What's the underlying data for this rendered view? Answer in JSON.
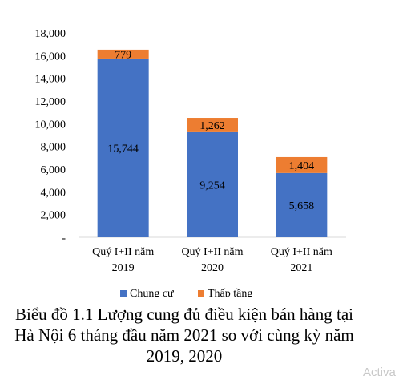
{
  "chart_data": {
    "type": "bar",
    "stacked": true,
    "title": "",
    "xlabel": "",
    "ylabel": "",
    "ylim": [
      0,
      18000
    ],
    "yticks": [
      "-",
      "2,000",
      "4,000",
      "6,000",
      "8,000",
      "10,000",
      "12,000",
      "14,000",
      "16,000",
      "18,000"
    ],
    "ytick_values": [
      0,
      2000,
      4000,
      6000,
      8000,
      10000,
      12000,
      14000,
      16000,
      18000
    ],
    "categories": [
      [
        "Quý I+II năm",
        "2019"
      ],
      [
        "Quý I+II năm",
        "2020"
      ],
      [
        "Quý I+II năm",
        "2021"
      ]
    ],
    "series": [
      {
        "name": "Chung cư",
        "color": "#4472c4",
        "values": [
          15744,
          9254,
          5658
        ],
        "labels": [
          "15,744",
          "9,254",
          "5,658"
        ]
      },
      {
        "name": "Thấp tầng",
        "color": "#ed7d31",
        "values": [
          779,
          1262,
          1404
        ],
        "labels": [
          "779",
          "1,262",
          "1,404"
        ]
      }
    ],
    "grid": false,
    "legend_position": "bottom"
  },
  "caption": [
    "Biểu đồ 1.1 Lượng cung đủ điều kiện bán hàng tại",
    "Hà Nội 6 tháng đầu năm 2021 so với cùng kỳ năm",
    "2019, 2020"
  ],
  "watermark": "Activa"
}
